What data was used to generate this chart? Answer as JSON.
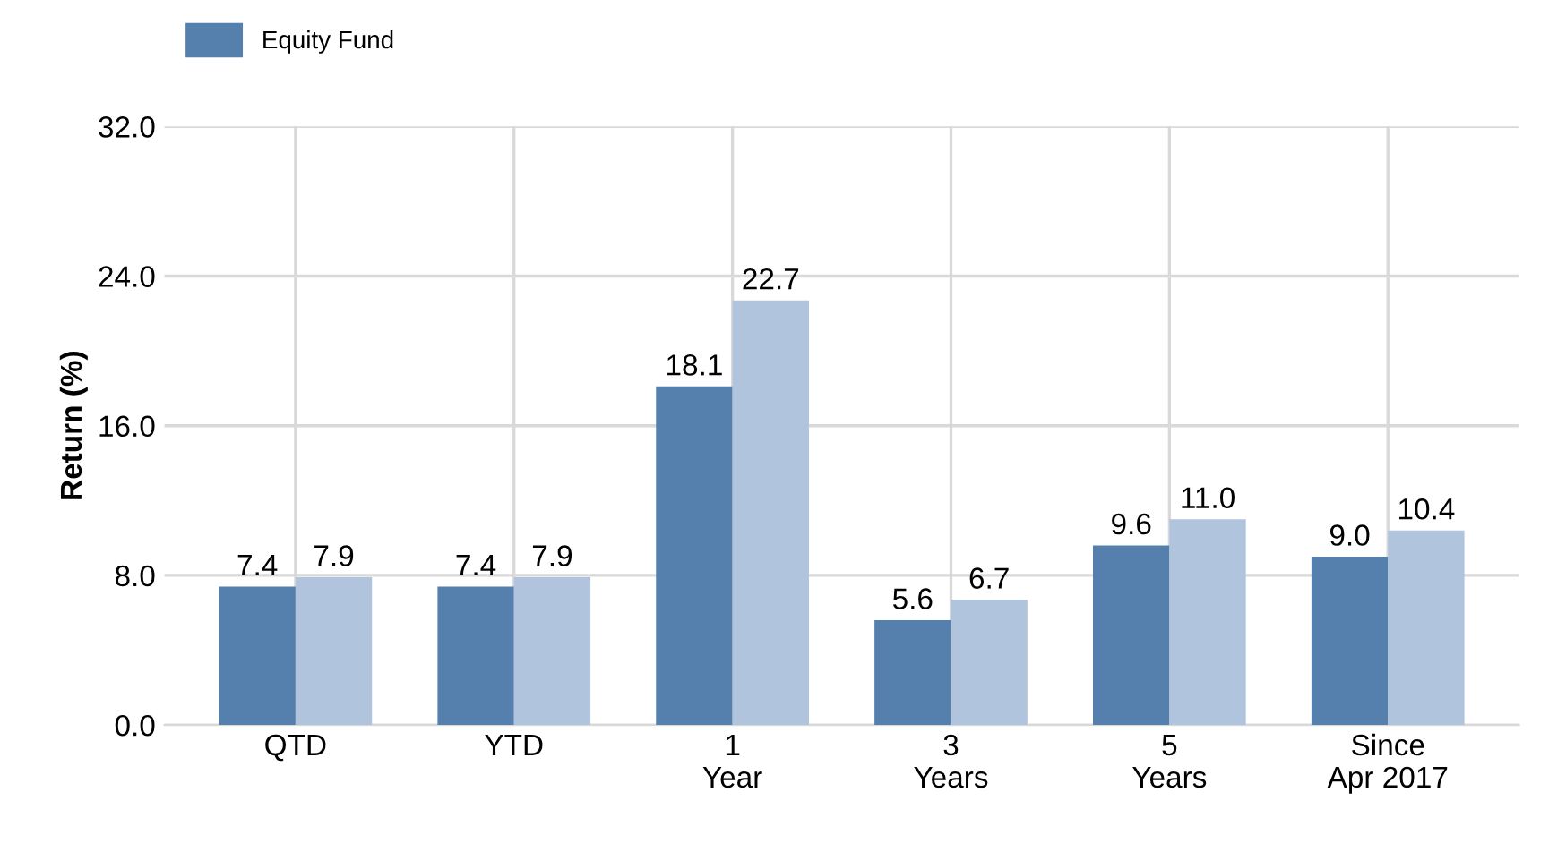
{
  "chart_data": {
    "type": "bar",
    "ylabel": "Return (%)",
    "categories": [
      "QTD",
      "YTD",
      "1\nYear",
      "3\nYears",
      "5\nYears",
      "Since\nApr 2017"
    ],
    "series": [
      {
        "name": "Equity Fund",
        "color": "#5580ad",
        "values": [
          7.4,
          7.4,
          18.1,
          5.6,
          9.6,
          9.0
        ],
        "value_labels": [
          "7.4",
          "7.4",
          "18.1",
          "5.6",
          "9.6",
          "9.0"
        ]
      },
      {
        "color": "#b0c4de",
        "values": [
          7.9,
          7.9,
          22.7,
          6.7,
          11.0,
          10.4
        ],
        "value_labels": [
          "7.9",
          "7.9",
          "22.7",
          "6.7",
          "11.0",
          "10.4"
        ]
      }
    ],
    "ylim": [
      0,
      32
    ],
    "yticks": [
      {
        "value": 0,
        "label": "0.0"
      },
      {
        "value": 8,
        "label": "8.0"
      },
      {
        "value": 16,
        "label": "16.0"
      },
      {
        "value": 24,
        "label": "24.0"
      },
      {
        "value": 32,
        "label": "32.0"
      }
    ],
    "grid": true,
    "legend": "top left"
  }
}
